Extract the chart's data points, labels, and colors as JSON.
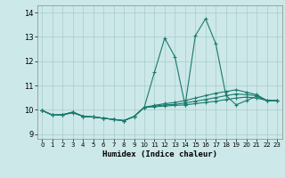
{
  "xlabel": "Humidex (Indice chaleur)",
  "background_color": "#cce8e8",
  "grid_color": "#aacccc",
  "line_color": "#1a7a6e",
  "xlim": [
    -0.5,
    23.5
  ],
  "ylim": [
    8.8,
    14.3
  ],
  "xticks": [
    0,
    1,
    2,
    3,
    4,
    5,
    6,
    7,
    8,
    9,
    10,
    11,
    12,
    13,
    14,
    15,
    16,
    17,
    18,
    19,
    20,
    21,
    22,
    23
  ],
  "yticks": [
    9,
    10,
    11,
    12,
    13,
    14
  ],
  "series": [
    [
      9.97,
      9.78,
      9.79,
      9.87,
      9.73,
      9.7,
      9.65,
      9.6,
      9.55,
      9.72,
      10.1,
      11.55,
      12.95,
      12.18,
      10.18,
      13.05,
      13.75,
      12.72,
      10.58,
      10.2,
      10.38,
      10.55,
      10.38,
      10.37
    ],
    [
      9.97,
      9.78,
      9.79,
      9.9,
      9.73,
      9.7,
      9.65,
      9.6,
      9.55,
      9.72,
      10.1,
      10.12,
      10.15,
      10.18,
      10.2,
      10.25,
      10.3,
      10.35,
      10.42,
      10.48,
      10.52,
      10.48,
      10.38,
      10.37
    ],
    [
      9.97,
      9.78,
      9.79,
      9.9,
      9.73,
      9.7,
      9.65,
      9.6,
      9.55,
      9.72,
      10.1,
      10.15,
      10.2,
      10.22,
      10.28,
      10.35,
      10.42,
      10.5,
      10.58,
      10.65,
      10.62,
      10.58,
      10.38,
      10.37
    ],
    [
      9.97,
      9.78,
      9.79,
      9.9,
      9.73,
      9.7,
      9.65,
      9.6,
      9.55,
      9.72,
      10.1,
      10.18,
      10.25,
      10.3,
      10.38,
      10.48,
      10.58,
      10.68,
      10.75,
      10.82,
      10.72,
      10.62,
      10.38,
      10.37
    ]
  ]
}
